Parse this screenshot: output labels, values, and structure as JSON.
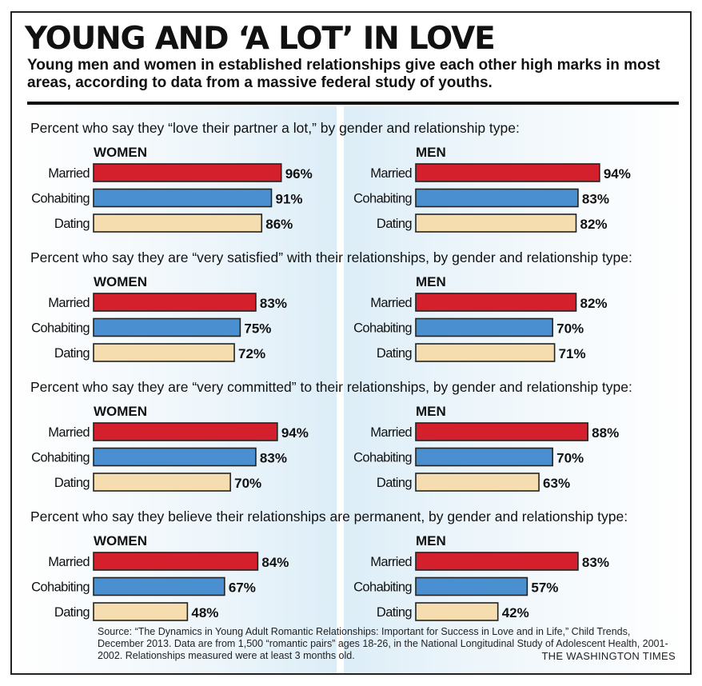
{
  "title": "YOUNG AND ‘A LOT’ IN LOVE",
  "subtitle": "Young men and women in established relationships give each other high marks in most areas, according to data from a massive federal study of youths.",
  "source": "Source: “The Dynamics in Young Adult Romantic Relationships: Important for Success in Love and in Life,” Child Trends, December 2013. Data are from 1,500 “romantic pairs” ages 18-26, in the National Longitudinal Study of Adolescent Health, 2001-2002. Relationships measured were at least 3 months old.",
  "credit": "THE WASHINGTON TIMES",
  "colors": {
    "Married": "#d4202c",
    "Cohabiting": "#4a8fd0",
    "Dating": "#f6ddb0",
    "outline": "#222222"
  },
  "chart_data": [
    {
      "type": "bar",
      "title": "Percent who say they “love their partner a lot,” by gender and relationship type:",
      "categories": [
        "Married",
        "Cohabiting",
        "Dating"
      ],
      "series": [
        {
          "name": "WOMEN",
          "values": [
            96,
            91,
            86
          ]
        },
        {
          "name": "MEN",
          "values": [
            94,
            83,
            82
          ]
        }
      ]
    },
    {
      "type": "bar",
      "title": "Percent who say they are “very satisfied” with their relationships, by gender and relationship type:",
      "categories": [
        "Married",
        "Cohabiting",
        "Dating"
      ],
      "series": [
        {
          "name": "WOMEN",
          "values": [
            83,
            75,
            72
          ]
        },
        {
          "name": "MEN",
          "values": [
            82,
            70,
            71
          ]
        }
      ]
    },
    {
      "type": "bar",
      "title": "Percent who say they are “very committed” to their relationships, by gender and relationship type:",
      "categories": [
        "Married",
        "Cohabiting",
        "Dating"
      ],
      "series": [
        {
          "name": "WOMEN",
          "values": [
            94,
            83,
            70
          ]
        },
        {
          "name": "MEN",
          "values": [
            88,
            70,
            63
          ]
        }
      ]
    },
    {
      "type": "bar",
      "title": "Percent who say they believe their relationships are permanent, by gender and relationship type:",
      "categories": [
        "Married",
        "Cohabiting",
        "Dating"
      ],
      "series": [
        {
          "name": "WOMEN",
          "values": [
            84,
            67,
            48
          ]
        },
        {
          "name": "MEN",
          "values": [
            83,
            57,
            42
          ]
        }
      ]
    }
  ]
}
